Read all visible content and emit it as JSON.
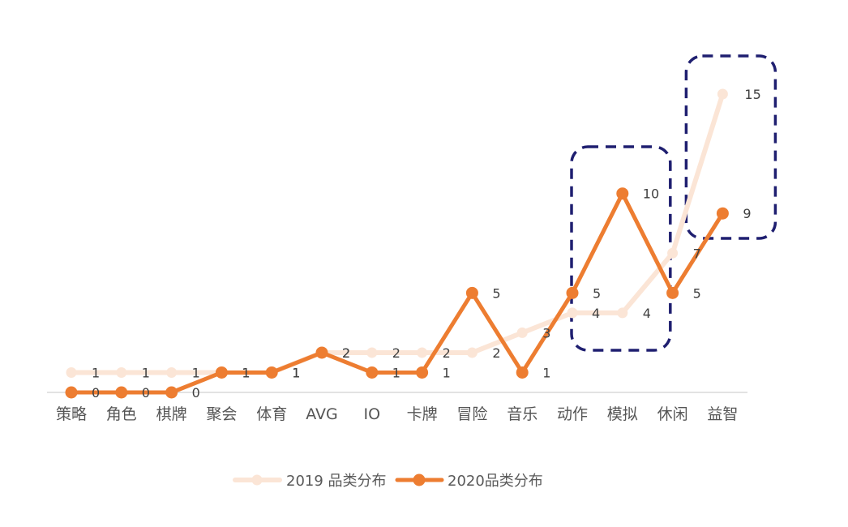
{
  "chart_data": {
    "type": "line",
    "title": "",
    "xlabel": "",
    "ylabel": "",
    "ylim": [
      0,
      16
    ],
    "grid": false,
    "legend_position": "bottom",
    "categories": [
      "策略",
      "角色",
      "棋牌",
      "聚会",
      "体育",
      "AVG",
      "IO",
      "卡牌",
      "冒险",
      "音乐",
      "动作",
      "模拟",
      "休闲",
      "益智"
    ],
    "series": [
      {
        "name": "2019 品类分布",
        "values": [
          1,
          1,
          1,
          1,
          1,
          2,
          2,
          2,
          2,
          3,
          4,
          4,
          7,
          15
        ],
        "color": "#FBE5D6"
      },
      {
        "name": "2020品类分布",
        "values": [
          0,
          0,
          0,
          1,
          1,
          2,
          1,
          1,
          5,
          1,
          5,
          10,
          5,
          9
        ],
        "color": "#ED7D31"
      }
    ],
    "annotations": [
      {
        "shape": "dashed-rounded-box",
        "covers_categories": [
          "动作",
          "模拟"
        ],
        "color": "#1F1F70"
      },
      {
        "shape": "dashed-rounded-box",
        "covers_categories": [
          "益智"
        ],
        "color": "#1F1F70"
      }
    ]
  }
}
